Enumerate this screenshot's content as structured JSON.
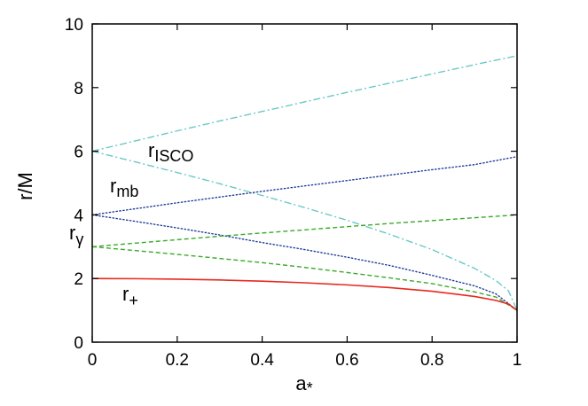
{
  "chart_data": {
    "type": "line",
    "xlabel": "a",
    "xlabel_sub": "*",
    "ylabel": "r/M",
    "xlim": [
      0,
      1
    ],
    "ylim": [
      0,
      10
    ],
    "xticks": [
      "0",
      "0.2",
      "0.4",
      "0.6",
      "0.8",
      "1"
    ],
    "yticks": [
      "0",
      "2",
      "4",
      "6",
      "8",
      "10"
    ],
    "grid": false,
    "labels": [
      {
        "base": "r",
        "sub": "ISCO"
      },
      {
        "base": "r",
        "sub": "mb"
      },
      {
        "base": "r",
        "sub": "γ"
      },
      {
        "base": "r",
        "sub": "+"
      }
    ],
    "series": [
      {
        "group": "r_ISCO",
        "branch": "retrograde",
        "color": "#6cc8c8",
        "dash": "dashdot",
        "x": [
          0,
          0.1,
          0.2,
          0.3,
          0.4,
          0.5,
          0.6,
          0.7,
          0.8,
          0.9,
          1.0
        ],
        "y": [
          6.0,
          6.32,
          6.64,
          6.95,
          7.25,
          7.55,
          7.85,
          8.14,
          8.43,
          8.72,
          9.0
        ]
      },
      {
        "group": "r_ISCO",
        "branch": "prograde",
        "color": "#6cc8c8",
        "dash": "dashdot",
        "x": [
          0,
          0.1,
          0.2,
          0.3,
          0.4,
          0.5,
          0.6,
          0.7,
          0.8,
          0.9,
          0.95,
          0.98,
          1.0
        ],
        "y": [
          6.0,
          5.67,
          5.33,
          4.98,
          4.61,
          4.23,
          3.83,
          3.39,
          2.91,
          2.32,
          1.94,
          1.61,
          1.0
        ]
      },
      {
        "group": "r_mb",
        "branch": "retrograde",
        "color": "#1f3c99",
        "dash": "dotted",
        "x": [
          0,
          0.1,
          0.2,
          0.3,
          0.4,
          0.5,
          0.6,
          0.7,
          0.8,
          0.9,
          1.0
        ],
        "y": [
          4.0,
          4.19,
          4.38,
          4.56,
          4.74,
          4.91,
          5.08,
          5.25,
          5.42,
          5.58,
          5.83
        ]
      },
      {
        "group": "r_mb",
        "branch": "prograde",
        "color": "#1f3c99",
        "dash": "dotted",
        "x": [
          0,
          0.1,
          0.2,
          0.3,
          0.4,
          0.5,
          0.6,
          0.7,
          0.8,
          0.9,
          0.95,
          1.0
        ],
        "y": [
          4.0,
          3.8,
          3.59,
          3.37,
          3.13,
          2.91,
          2.67,
          2.41,
          2.1,
          1.77,
          1.52,
          1.0
        ]
      },
      {
        "group": "r_gamma",
        "branch": "retrograde",
        "color": "#3aaa2a",
        "dash": "dashed",
        "x": [
          0,
          0.1,
          0.2,
          0.3,
          0.4,
          0.5,
          0.6,
          0.7,
          0.8,
          0.9,
          1.0
        ],
        "y": [
          3.0,
          3.11,
          3.22,
          3.33,
          3.43,
          3.53,
          3.63,
          3.73,
          3.82,
          3.91,
          4.0
        ]
      },
      {
        "group": "r_gamma",
        "branch": "prograde",
        "color": "#3aaa2a",
        "dash": "dashed",
        "x": [
          0,
          0.1,
          0.2,
          0.3,
          0.4,
          0.5,
          0.6,
          0.7,
          0.8,
          0.9,
          0.95,
          1.0
        ],
        "y": [
          3.0,
          2.88,
          2.76,
          2.63,
          2.5,
          2.35,
          2.19,
          2.02,
          1.84,
          1.58,
          1.42,
          1.0
        ]
      },
      {
        "group": "r_plus",
        "branch": "horizon",
        "color": "#e8281e",
        "dash": "solid",
        "x": [
          0,
          0.1,
          0.2,
          0.3,
          0.4,
          0.5,
          0.6,
          0.7,
          0.8,
          0.9,
          0.95,
          0.98,
          1.0
        ],
        "y": [
          2.0,
          1.995,
          1.98,
          1.954,
          1.917,
          1.866,
          1.8,
          1.714,
          1.6,
          1.436,
          1.312,
          1.199,
          1.0
        ]
      }
    ]
  }
}
